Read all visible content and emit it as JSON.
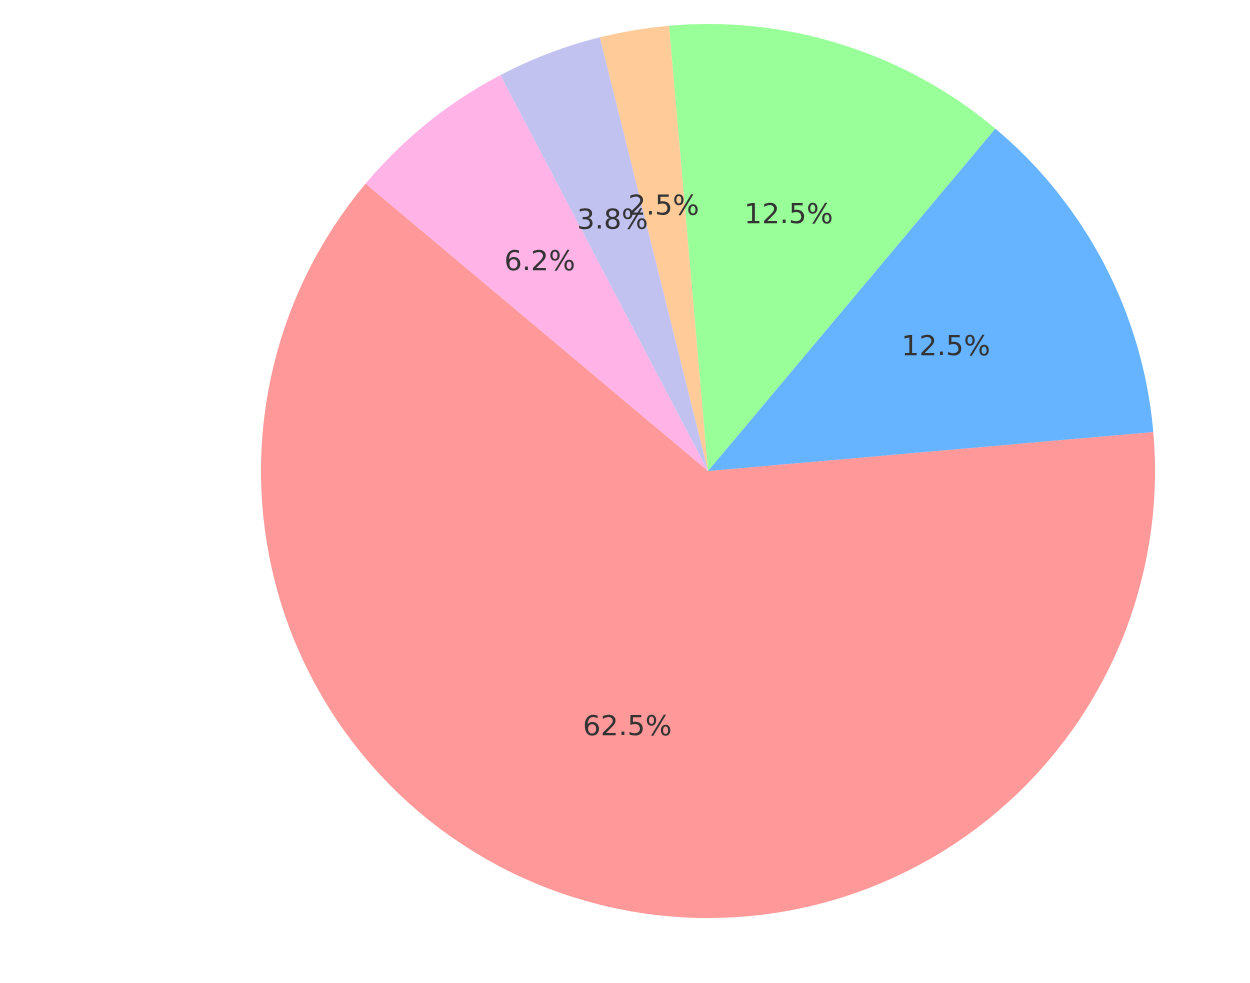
{
  "chart_data": {
    "type": "pie",
    "values": [
      62.5,
      12.5,
      12.5,
      2.5,
      3.8,
      6.2
    ],
    "value_labels": [
      "62.5%",
      "12.5%",
      "12.5%",
      "2.5%",
      "3.8%",
      "6.2%"
    ],
    "colors": [
      "#ff9999",
      "#66b3ff",
      "#99ff99",
      "#ffcc99",
      "#c2c2f0",
      "#ffb3e6"
    ]
  }
}
